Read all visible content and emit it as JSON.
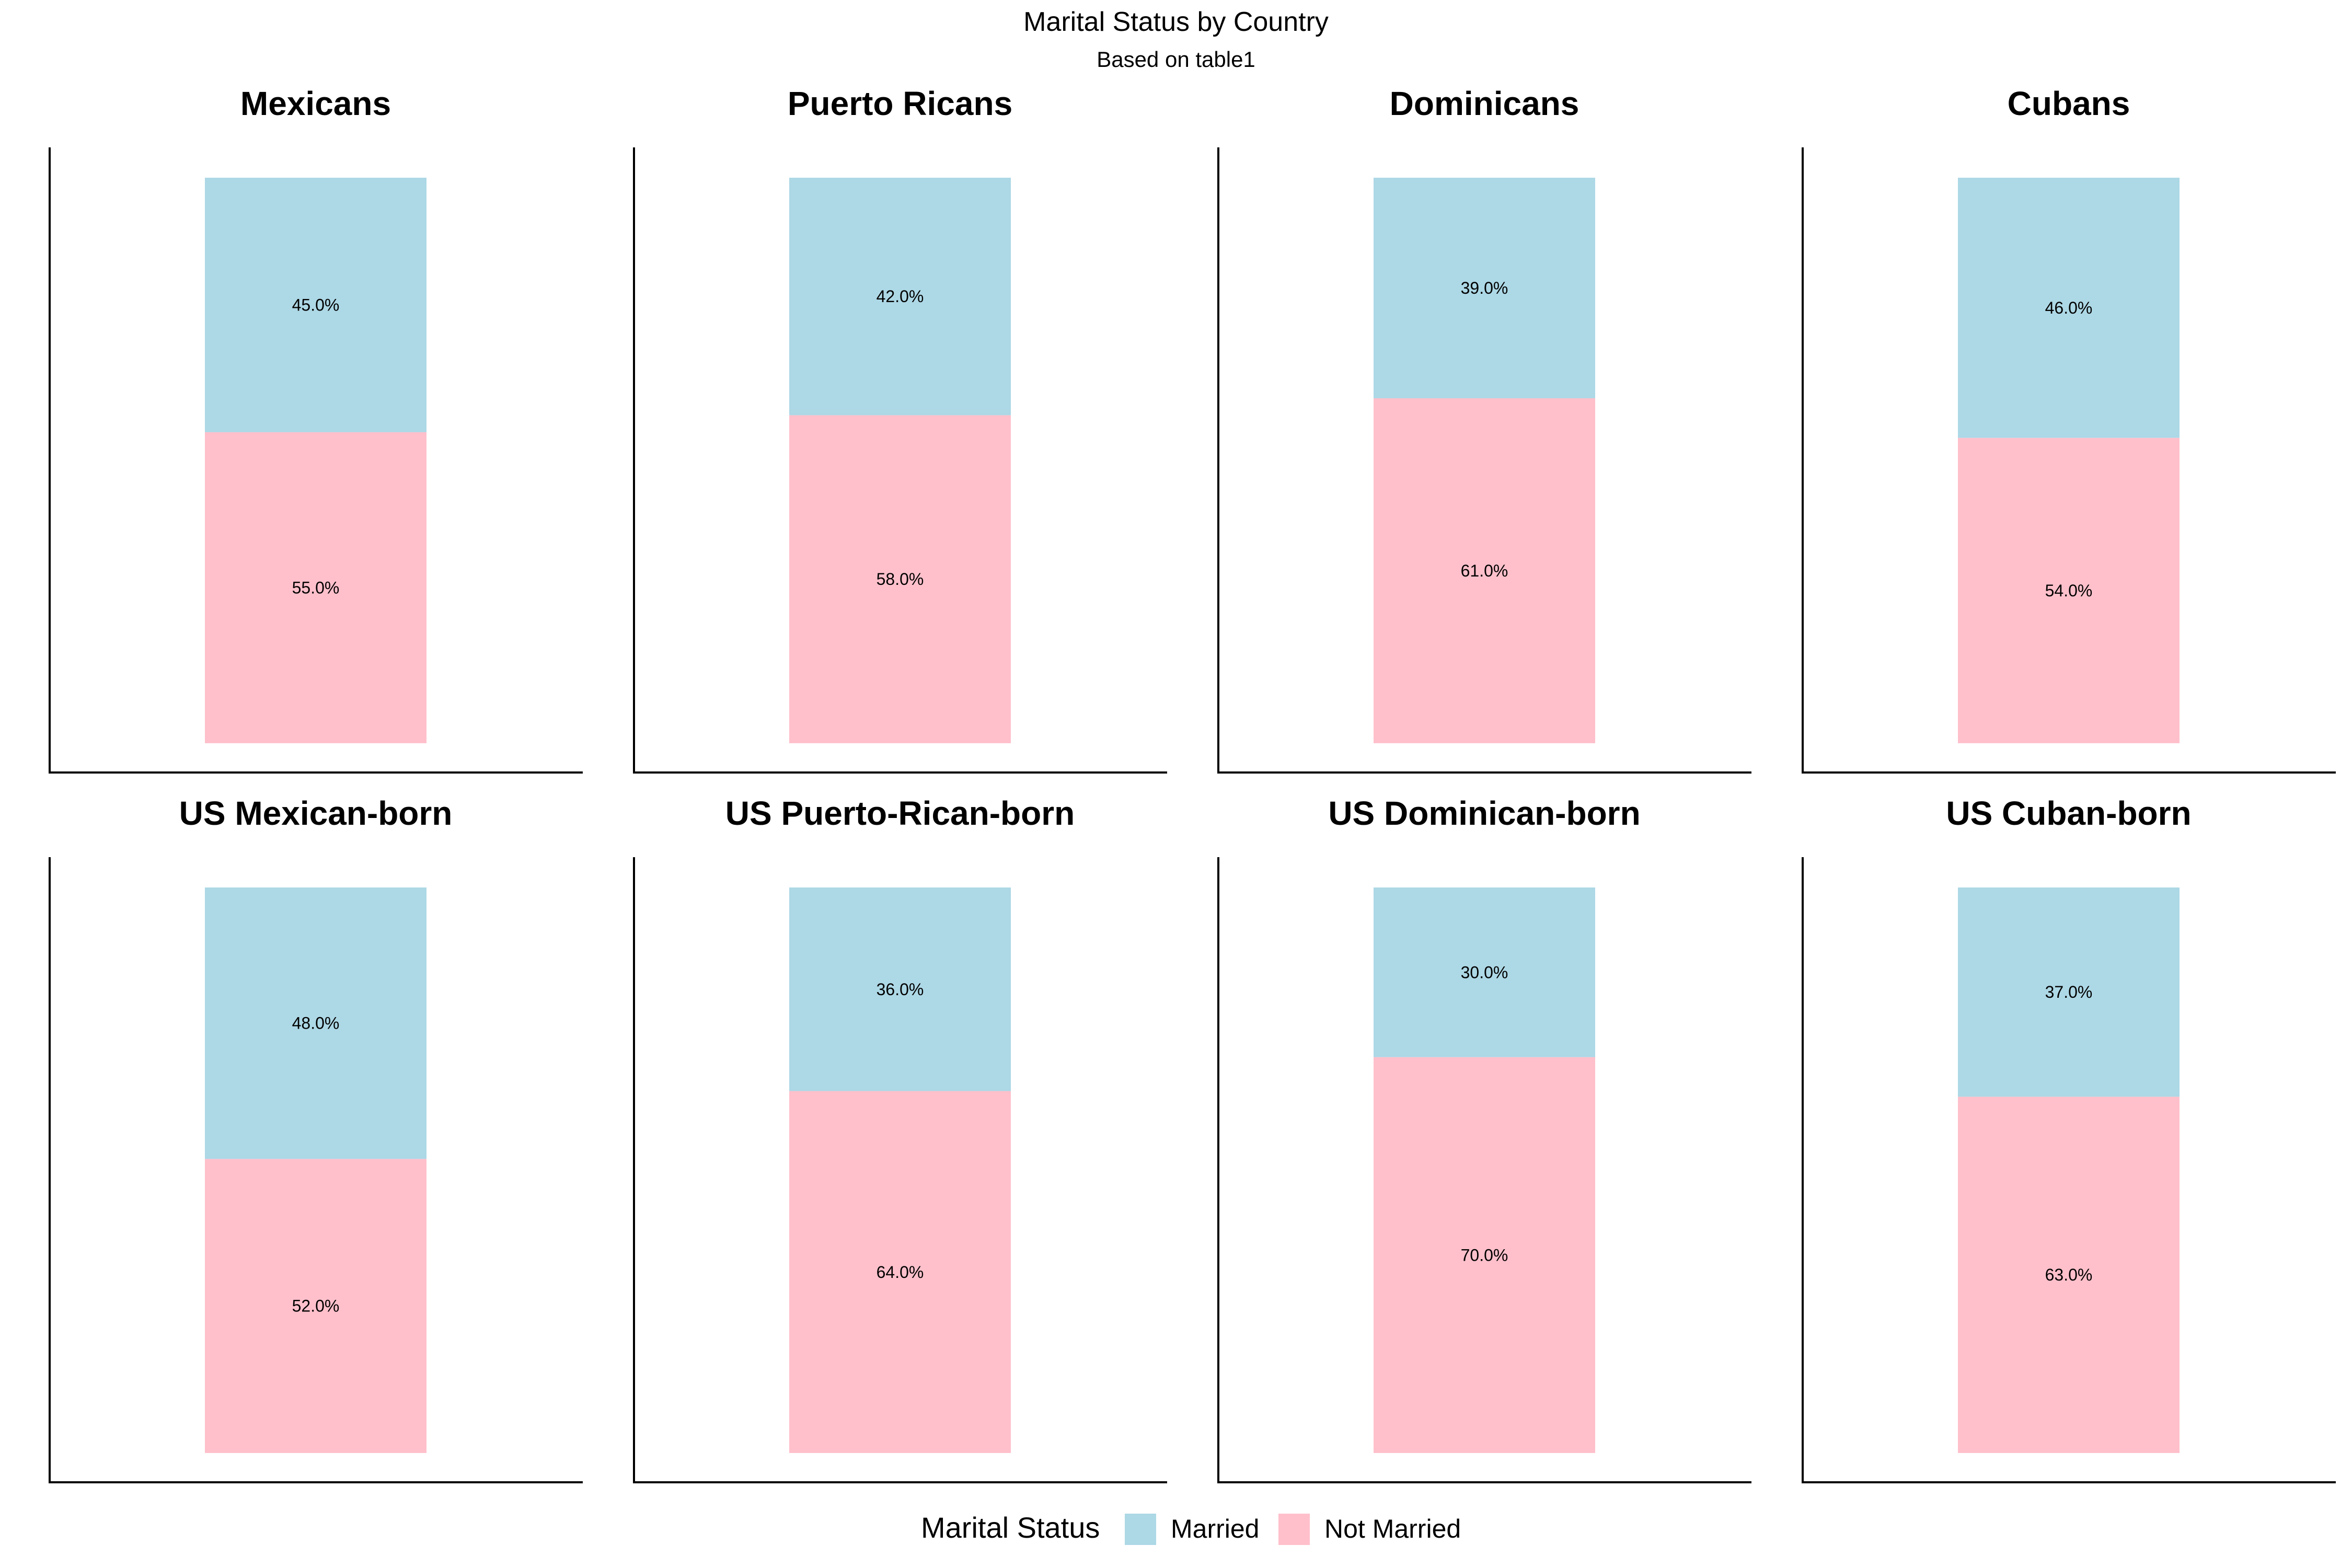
{
  "chart_data": {
    "type": "bar",
    "title": "Marital Status by Country",
    "subtitle": "Based on table1",
    "stacked": true,
    "ylim": [
      0,
      100
    ],
    "categories": [
      "Mexicans",
      "Puerto Ricans",
      "Dominicans",
      "Cubans",
      "US Mexican-born",
      "US Puerto-Rican-born",
      "US Dominican-born",
      "US Cuban-born"
    ],
    "series": [
      {
        "name": "Married",
        "color": "#add8e6",
        "values": [
          45,
          42,
          39,
          46,
          48,
          36,
          30,
          37
        ],
        "labels": [
          "45.0%",
          "42.0%",
          "39.0%",
          "46.0%",
          "48.0%",
          "36.0%",
          "30.0%",
          "37.0%"
        ]
      },
      {
        "name": "Not Married",
        "color": "#ffc0cb",
        "values": [
          55,
          58,
          61,
          54,
          52,
          64,
          70,
          63
        ],
        "labels": [
          "55.0%",
          "58.0%",
          "61.0%",
          "54.0%",
          "52.0%",
          "64.0%",
          "70.0%",
          "63.0%"
        ]
      }
    ],
    "legend": {
      "title": "Marital Status",
      "placement": "bottom"
    },
    "grid": false
  }
}
